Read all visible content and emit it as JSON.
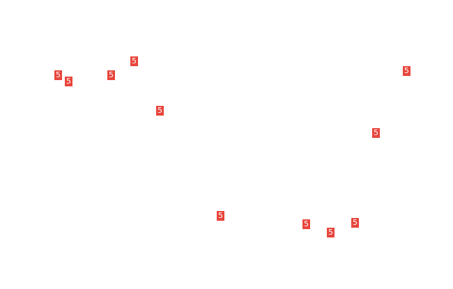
{
  "marker_color": "#e8453c",
  "markers": [
    {
      "label": "5"
    },
    {
      "label": "5"
    },
    {
      "label": "5"
    },
    {
      "label": "5"
    },
    {
      "label": "5"
    },
    {
      "label": "5"
    },
    {
      "label": "5"
    },
    {
      "label": "5"
    },
    {
      "label": "5"
    },
    {
      "label": "5"
    },
    {
      "label": "5"
    }
  ]
}
